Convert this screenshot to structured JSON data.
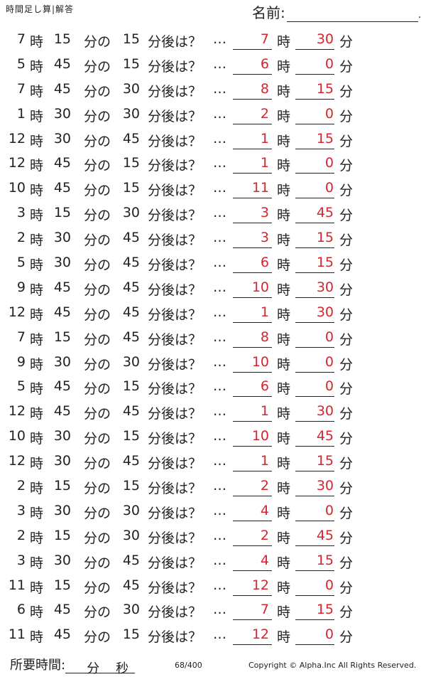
{
  "title": "時間足し算|解答",
  "name_label": "名前:",
  "name_dot": ".",
  "unit_hour": "時",
  "unit_min": "分",
  "unit_min_no": "分の",
  "after_q": "分後は？",
  "dots": "…",
  "answer_color": "#d8242f",
  "rows": [
    {
      "h": "7",
      "m1": "15",
      "m2": "15",
      "ah": "7",
      "am": "30"
    },
    {
      "h": "5",
      "m1": "45",
      "m2": "15",
      "ah": "6",
      "am": "0"
    },
    {
      "h": "7",
      "m1": "45",
      "m2": "30",
      "ah": "8",
      "am": "15"
    },
    {
      "h": "1",
      "m1": "30",
      "m2": "30",
      "ah": "2",
      "am": "0"
    },
    {
      "h": "12",
      "m1": "30",
      "m2": "45",
      "ah": "1",
      "am": "15"
    },
    {
      "h": "12",
      "m1": "45",
      "m2": "15",
      "ah": "1",
      "am": "0"
    },
    {
      "h": "10",
      "m1": "45",
      "m2": "15",
      "ah": "11",
      "am": "0"
    },
    {
      "h": "3",
      "m1": "15",
      "m2": "30",
      "ah": "3",
      "am": "45"
    },
    {
      "h": "2",
      "m1": "30",
      "m2": "45",
      "ah": "3",
      "am": "15"
    },
    {
      "h": "5",
      "m1": "30",
      "m2": "45",
      "ah": "6",
      "am": "15"
    },
    {
      "h": "9",
      "m1": "45",
      "m2": "45",
      "ah": "10",
      "am": "30"
    },
    {
      "h": "12",
      "m1": "45",
      "m2": "45",
      "ah": "1",
      "am": "30"
    },
    {
      "h": "7",
      "m1": "15",
      "m2": "45",
      "ah": "8",
      "am": "0"
    },
    {
      "h": "9",
      "m1": "30",
      "m2": "30",
      "ah": "10",
      "am": "0"
    },
    {
      "h": "5",
      "m1": "45",
      "m2": "15",
      "ah": "6",
      "am": "0"
    },
    {
      "h": "12",
      "m1": "45",
      "m2": "45",
      "ah": "1",
      "am": "30"
    },
    {
      "h": "10",
      "m1": "30",
      "m2": "15",
      "ah": "10",
      "am": "45"
    },
    {
      "h": "12",
      "m1": "30",
      "m2": "45",
      "ah": "1",
      "am": "15"
    },
    {
      "h": "2",
      "m1": "15",
      "m2": "15",
      "ah": "2",
      "am": "30"
    },
    {
      "h": "3",
      "m1": "30",
      "m2": "30",
      "ah": "4",
      "am": "0"
    },
    {
      "h": "2",
      "m1": "15",
      "m2": "30",
      "ah": "2",
      "am": "45"
    },
    {
      "h": "3",
      "m1": "30",
      "m2": "45",
      "ah": "4",
      "am": "15"
    },
    {
      "h": "11",
      "m1": "15",
      "m2": "45",
      "ah": "12",
      "am": "0"
    },
    {
      "h": "6",
      "m1": "45",
      "m2": "30",
      "ah": "7",
      "am": "15"
    },
    {
      "h": "11",
      "m1": "45",
      "m2": "15",
      "ah": "12",
      "am": "0"
    }
  ],
  "footer": {
    "time_label": "所要時間:",
    "min": "分",
    "sec": "秒",
    "page": "68/400",
    "copyright": "Copyright ©  Alpha.Inc All Rights Reserved."
  }
}
